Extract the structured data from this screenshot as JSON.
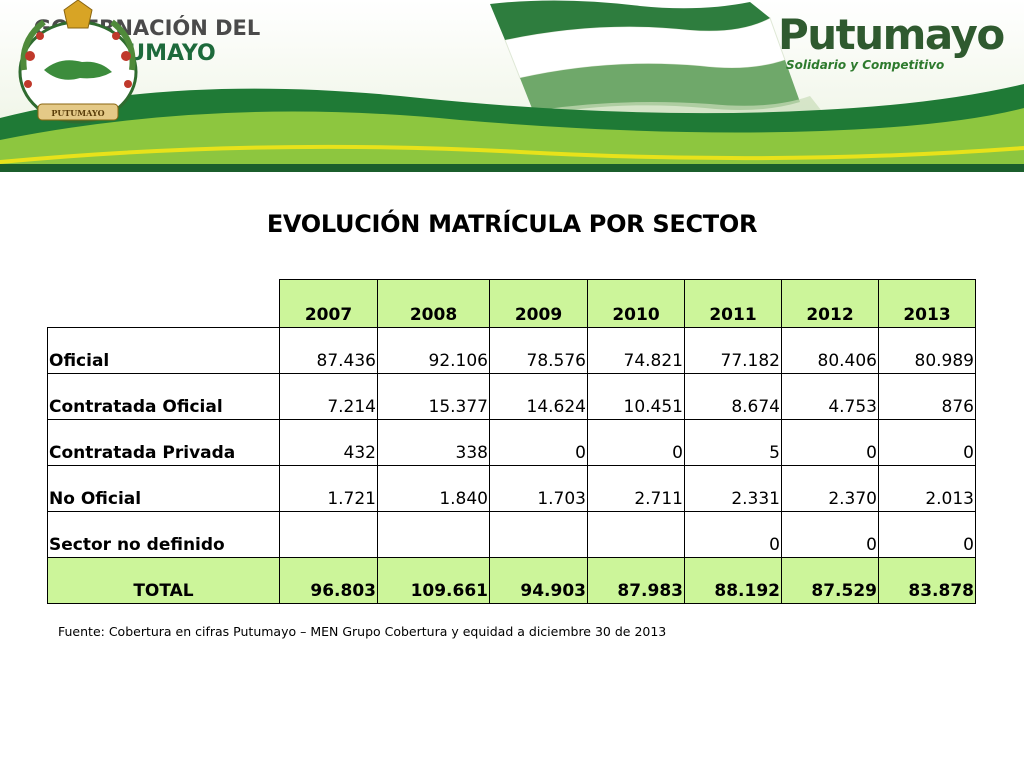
{
  "header": {
    "left_title_line1": "GOBERNACIÓN DEL",
    "left_title_line2": "PUTUMAYO",
    "brand_name": "Putumayo",
    "brand_tagline": "Solidario y Competitivo",
    "seal_text": "PUTUMAYO",
    "colors": {
      "dark_green": "#1d6a3b",
      "light_green": "#8dc63f",
      "yellow_line": "#e8e21a",
      "gray_text": "#4a4a4a"
    }
  },
  "title": "EVOLUCIÓN MATRÍCULA POR SECTOR",
  "table": {
    "columns": [
      "2007",
      "2008",
      "2009",
      "2010",
      "2011",
      "2012",
      "2013"
    ],
    "rows": [
      {
        "label": "Oficial",
        "values": [
          "87.436",
          "92.106",
          "78.576",
          "74.821",
          "77.182",
          "80.406",
          "80.989"
        ]
      },
      {
        "label": "Contratada Oficial",
        "values": [
          "7.214",
          "15.377",
          "14.624",
          "10.451",
          "8.674",
          "4.753",
          "876"
        ]
      },
      {
        "label": "Contratada Privada",
        "values": [
          "432",
          "338",
          "0",
          "0",
          "5",
          "0",
          "0"
        ]
      },
      {
        "label": "No Oficial",
        "values": [
          "1.721",
          "1.840",
          "1.703",
          "2.711",
          "2.331",
          "2.370",
          "2.013"
        ]
      },
      {
        "label": "Sector no definido",
        "values": [
          "",
          "",
          "",
          "",
          "0",
          "0",
          "0"
        ]
      }
    ],
    "total": {
      "label": "TOTAL",
      "values": [
        "96.803",
        "109.661",
        "94.903",
        "87.983",
        "88.192",
        "87.529",
        "83.878"
      ]
    },
    "highlight_color": "#ccf59a"
  },
  "source": "Fuente: Cobertura en cifras Putumayo – MEN Grupo Cobertura y equidad a diciembre 30 de 2013"
}
